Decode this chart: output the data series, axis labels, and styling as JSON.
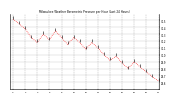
{
  "title": "Milwaukee Weather Barometric Pressure per Hour (Last 24 Hours)",
  "ylim": [
    29.5,
    30.6
  ],
  "xlim": [
    -0.5,
    24
  ],
  "bg_color": "#ffffff",
  "grid_color": "#aaaaaa",
  "line_color": "#ff0000",
  "tick_color": "#000000",
  "pressure_data": [
    30.52,
    30.45,
    30.38,
    30.25,
    30.18,
    30.3,
    30.22,
    30.35,
    30.25,
    30.15,
    30.25,
    30.18,
    30.08,
    30.18,
    30.1,
    30.0,
    29.92,
    29.98,
    29.88,
    29.8,
    29.9,
    29.82,
    29.75,
    29.68,
    29.62
  ],
  "ytick_labels": [
    "30.5",
    "30.4",
    "30.3",
    "30.2",
    "30.1",
    "30.0",
    "29.9",
    "29.8",
    "29.7",
    "29.6"
  ],
  "ytick_values": [
    30.5,
    30.4,
    30.3,
    30.2,
    30.1,
    30.0,
    29.9,
    29.8,
    29.7,
    29.6
  ],
  "xtick_positions": [
    0,
    2,
    4,
    6,
    8,
    10,
    12,
    14,
    16,
    18,
    20,
    22,
    24
  ],
  "xtick_labels": [
    "0",
    "2",
    "4",
    "6",
    "8",
    "10",
    "12",
    "14",
    "16",
    "18",
    "20",
    "22",
    "24"
  ]
}
